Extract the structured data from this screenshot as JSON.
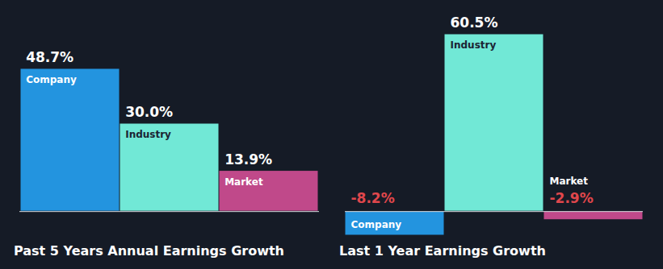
{
  "chart_data": [
    {
      "type": "bar",
      "title": "Past 5 Years Annual Earnings Growth",
      "categories": [
        "Company",
        "Industry",
        "Market"
      ],
      "values": [
        48.7,
        30.0,
        13.9
      ],
      "value_labels": [
        "48.7%",
        "30.0%",
        "13.9%"
      ],
      "colors": [
        "#2394df",
        "#71e8d6",
        "#c0498a"
      ],
      "data_labels": true,
      "tick_labels": false
    },
    {
      "type": "bar",
      "title": "Last 1 Year Earnings Growth",
      "categories": [
        "Company",
        "Industry",
        "Market"
      ],
      "values": [
        -8.2,
        60.5,
        -2.9
      ],
      "value_labels": [
        "-8.2%",
        "60.5%",
        "-2.9%"
      ],
      "colors": [
        "#2394df",
        "#71e8d6",
        "#c0498a"
      ],
      "data_labels": true,
      "tick_labels": false
    }
  ]
}
